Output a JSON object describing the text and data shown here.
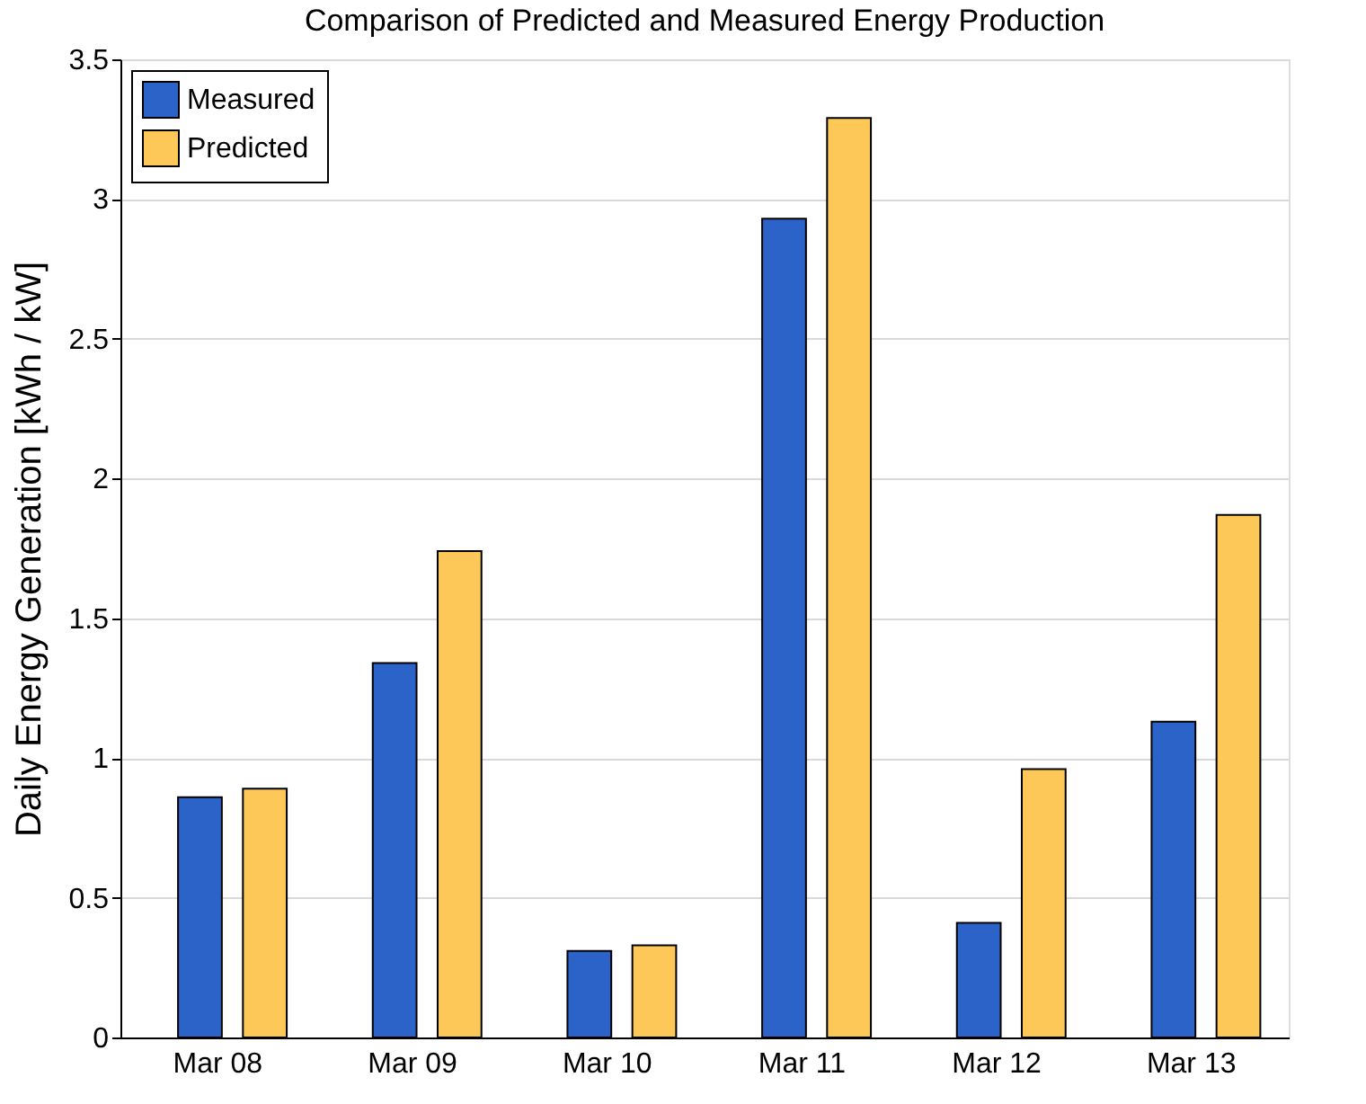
{
  "chart_data": {
    "type": "bar",
    "title": "Comparison of Predicted and Measured Energy Production",
    "ylabel": "Daily Energy Generation [kWh / kW]",
    "categories": [
      "Mar 08",
      "Mar 09",
      "Mar 10",
      "Mar 11",
      "Mar 12",
      "Mar 13"
    ],
    "series": [
      {
        "name": "Measured",
        "color": "#2b63c8",
        "values": [
          0.86,
          1.34,
          0.31,
          2.93,
          0.41,
          1.13
        ]
      },
      {
        "name": "Predicted",
        "color": "#fdc857",
        "values": [
          0.89,
          1.74,
          0.33,
          3.29,
          0.96,
          1.87
        ]
      }
    ],
    "ylim": [
      0,
      3.5
    ],
    "yticks": [
      0,
      0.5,
      1,
      1.5,
      2,
      2.5,
      3,
      3.5
    ],
    "grid": "y",
    "legend": "top left"
  }
}
